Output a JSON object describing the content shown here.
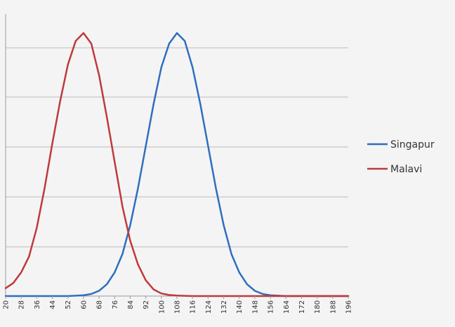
{
  "chart_data": {
    "type": "line",
    "title": "",
    "xlabel": "",
    "ylabel": "",
    "grid": true,
    "legend_position": "right",
    "x_ticks": [
      20,
      28,
      36,
      44,
      52,
      60,
      68,
      76,
      84,
      92,
      100,
      108,
      116,
      124,
      132,
      140,
      148,
      156,
      164,
      172,
      180,
      188,
      196
    ],
    "xlim": [
      20,
      196
    ],
    "ylim": [
      0,
      1.0
    ],
    "series": [
      {
        "name": "Singapur",
        "color": "#2e6fbd",
        "x": [
          20,
          28,
          36,
          44,
          52,
          60,
          64,
          68,
          72,
          76,
          80,
          84,
          88,
          92,
          96,
          100,
          104,
          108,
          112,
          116,
          120,
          124,
          128,
          132,
          136,
          140,
          144,
          148,
          152,
          156,
          164,
          172,
          180,
          188,
          196
        ],
        "y": [
          0,
          0,
          0,
          0,
          0,
          0.003,
          0.008,
          0.02,
          0.045,
          0.09,
          0.16,
          0.27,
          0.41,
          0.57,
          0.73,
          0.87,
          0.96,
          1.0,
          0.97,
          0.87,
          0.73,
          0.57,
          0.41,
          0.27,
          0.16,
          0.09,
          0.045,
          0.02,
          0.008,
          0.003,
          0,
          0,
          0,
          0,
          0
        ]
      },
      {
        "name": "Malavi",
        "color": "#c0393b",
        "x": [
          20,
          24,
          28,
          32,
          36,
          40,
          44,
          48,
          52,
          56,
          60,
          64,
          68,
          72,
          76,
          80,
          84,
          88,
          92,
          96,
          100,
          104,
          108,
          116,
          124,
          132,
          140,
          148,
          156,
          164,
          172,
          180,
          188,
          196
        ],
        "y": [
          0.03,
          0.05,
          0.09,
          0.15,
          0.26,
          0.41,
          0.58,
          0.74,
          0.88,
          0.97,
          1.0,
          0.96,
          0.84,
          0.68,
          0.51,
          0.34,
          0.21,
          0.12,
          0.06,
          0.025,
          0.01,
          0.004,
          0.002,
          0,
          0,
          0,
          0,
          0,
          0,
          0,
          0,
          0,
          0,
          0
        ]
      }
    ]
  }
}
